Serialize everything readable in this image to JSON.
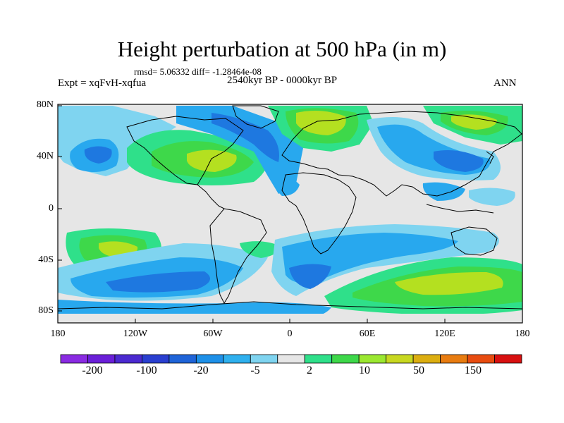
{
  "title": "Height perturbation at 500 hPa (in m)",
  "stats": "rmsd= 5.06332 diff= -1.28464e-08",
  "experiment": "Expt = xqFvH-xqfua",
  "period": "2540kyr BP - 0000kyr BP",
  "season": "ANN",
  "lat_labels": [
    "80N",
    "40N",
    "0",
    "40S",
    "80S"
  ],
  "lon_labels": [
    "180",
    "120W",
    "60W",
    "0",
    "60E",
    "120E",
    "180"
  ],
  "colorbar": {
    "colors": [
      "#8a2be2",
      "#6a1fd8",
      "#4b2ad0",
      "#2a3fd0",
      "#1f64d8",
      "#1e90e8",
      "#2fb0ee",
      "#7fd4f0",
      "#e6e6e6",
      "#2fe08a",
      "#3ed84a",
      "#9be830",
      "#c8d820",
      "#dcae10",
      "#e87c10",
      "#e84c10",
      "#d81010"
    ],
    "labels": [
      "-200",
      "-100",
      "-20",
      "-5",
      "2",
      "10",
      "50",
      "150"
    ]
  },
  "colors": {
    "strong_neg": "#1e78e0",
    "mid_neg": "#28a8ee",
    "weak_neg": "#7fd4f0",
    "neutral": "#e6e6e6",
    "weak_pos": "#2fe08a",
    "mid_pos": "#3ed84a",
    "strong_pos": "#b4e020",
    "coast": "#000000"
  }
}
